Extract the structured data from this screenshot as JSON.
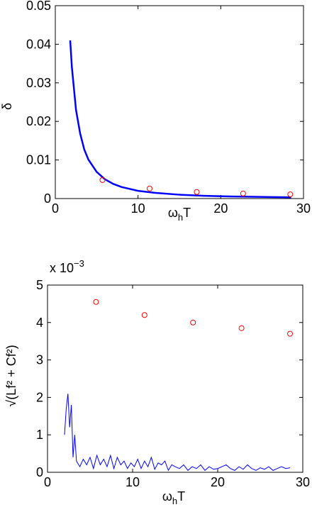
{
  "chart_data": [
    {
      "type": "line",
      "y_label": "δ",
      "x_label_parts": [
        "ω",
        "h",
        "T"
      ],
      "xlim": [
        0,
        30
      ],
      "xticks": [
        0,
        10,
        20,
        30
      ],
      "ylim": [
        0,
        0.05
      ],
      "yticks": [
        0,
        0.01,
        0.02,
        0.03,
        0.04,
        0.05
      ],
      "series": [
        {
          "color": "#0000ff",
          "mode": "line",
          "x": [
            1.8,
            2,
            2.5,
            3,
            3.5,
            4,
            5,
            6,
            7,
            8,
            10,
            12,
            15,
            18,
            21,
            24,
            27,
            28.5
          ],
          "values": [
            0.041,
            0.0341,
            0.023,
            0.0169,
            0.0127,
            0.0101,
            0.0069,
            0.005,
            0.0038,
            0.003,
            0.002,
            0.0015,
            0.001,
            0.00072,
            0.00056,
            0.00045,
            0.00036,
            0.00033
          ]
        },
        {
          "color": "#ff0000",
          "mode": "markers",
          "x": [
            5.7,
            11.4,
            17.1,
            22.7,
            28.4
          ],
          "values": [
            0.0048,
            0.0026,
            0.0017,
            0.0013,
            0.0011
          ]
        }
      ]
    },
    {
      "type": "line",
      "y_label": "√(Lf² + Cf²)",
      "x_label_parts": [
        "ω",
        "h",
        "T"
      ],
      "y_scale": {
        "base": "x 10",
        "exp": "−3"
      },
      "xlim": [
        0,
        30
      ],
      "xticks": [
        0,
        10,
        20,
        30
      ],
      "ylim": [
        0,
        5
      ],
      "yticks": [
        0,
        1,
        2,
        3,
        4,
        5
      ],
      "series": [
        {
          "color": "#0000ff",
          "mode": "line",
          "x": [
            2,
            2.2,
            2.4,
            2.6,
            2.8,
            3,
            3.2,
            3.4,
            3.8,
            4.2,
            4.6,
            5,
            5.4,
            5.8,
            6.2,
            6.6,
            7,
            7.4,
            7.8,
            8.2,
            8.6,
            9,
            9.4,
            9.8,
            10.2,
            10.6,
            11,
            11.4,
            11.8,
            12.2,
            12.6,
            13,
            13.4,
            13.8,
            14.2,
            14.6,
            15,
            15.5,
            16,
            16.5,
            17,
            17.5,
            18,
            18.5,
            19,
            19.5,
            20,
            20.5,
            21,
            21.5,
            22,
            22.5,
            23,
            23.5,
            24,
            24.5,
            25,
            25.5,
            26,
            26.5,
            27,
            27.5,
            28,
            28.5
          ],
          "values": [
            1.0,
            1.7,
            2.1,
            1.2,
            1.8,
            0.4,
            1.0,
            0.3,
            0.15,
            0.35,
            0.2,
            0.4,
            0.1,
            0.45,
            0.2,
            0.35,
            0.15,
            0.45,
            0.1,
            0.4,
            0.2,
            0.3,
            0.1,
            0.25,
            0.15,
            0.35,
            0.1,
            0.3,
            0.15,
            0.4,
            0.08,
            0.25,
            0.2,
            0.3,
            0.05,
            0.2,
            0.15,
            0.1,
            0.2,
            0.05,
            0.15,
            0.1,
            0.2,
            0.05,
            0.15,
            0.08,
            0.1,
            0.15,
            0.2,
            0.1,
            0.05,
            0.15,
            0.08,
            0.2,
            0.1,
            0.05,
            0.12,
            0.08,
            0.15,
            0.05,
            0.1,
            0.15,
            0.1,
            0.12
          ]
        },
        {
          "color": "#ff0000",
          "mode": "markers",
          "x": [
            5.7,
            11.4,
            17.1,
            22.8,
            28.5
          ],
          "values": [
            4.55,
            4.2,
            4.0,
            3.85,
            3.7
          ]
        }
      ]
    }
  ]
}
